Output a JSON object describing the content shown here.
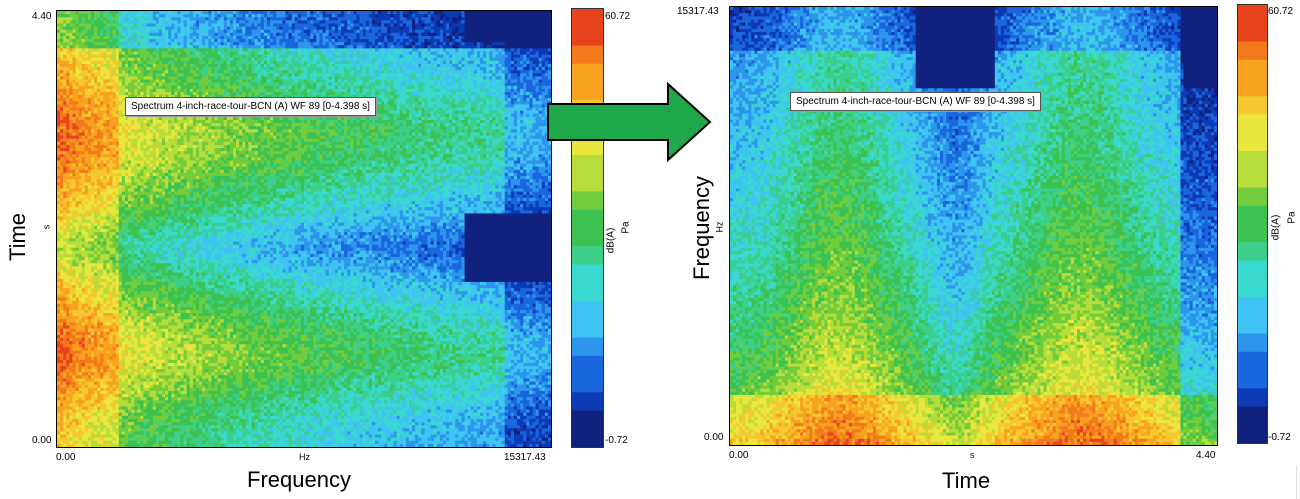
{
  "chart_data": [
    {
      "type": "heatmap",
      "title": "Spectrum 4-inch-race-tour-BCN (A) WF 89 [0-4.398 s]",
      "xlabel": "Frequency",
      "xunit": "Hz",
      "ylabel": "Time",
      "yunit": "s",
      "xlim": [
        0.0,
        15317.43
      ],
      "ylim": [
        0.0,
        4.4
      ],
      "x_tick_labels": [
        "0.00",
        "15317.43"
      ],
      "y_tick_labels": [
        "0.00",
        "4.40"
      ],
      "colorbar": {
        "label": "dB(A)",
        "unit": "Pa",
        "range": [
          -0.72,
          60.72
        ],
        "max_label": "60.72",
        "min_label": "-0.72"
      },
      "colors": [
        "#10227e",
        "#0d3bb6",
        "#1a66df",
        "#2d96ec",
        "#3fc3f3",
        "#3ad9d0",
        "#3ccf8a",
        "#3cc251",
        "#72cc3b",
        "#b6dd3a",
        "#e9e73d",
        "#f6c830",
        "#f8a21f",
        "#f27a1c",
        "#e8431c"
      ]
    },
    {
      "type": "heatmap",
      "title": "Spectrum 4-inch-race-tour-BCN (A) WF 89 [0-4.398 s]",
      "xlabel": "Time",
      "xunit": "s",
      "ylabel": "Frequency",
      "yunit": "Hz",
      "xlim": [
        0.0,
        4.4
      ],
      "ylim": [
        0.0,
        15317.43
      ],
      "x_tick_labels": [
        "0.00",
        "4.40"
      ],
      "y_tick_labels": [
        "0.00",
        "15317.43"
      ],
      "colorbar": {
        "label": "dB(A)",
        "unit": "Pa",
        "range": [
          -0.72,
          60.72
        ],
        "max_label": "60.72",
        "min_label": "-0.72"
      }
    }
  ],
  "arrow": {
    "color": "#1ea84a",
    "icon": "right-arrow-icon"
  }
}
